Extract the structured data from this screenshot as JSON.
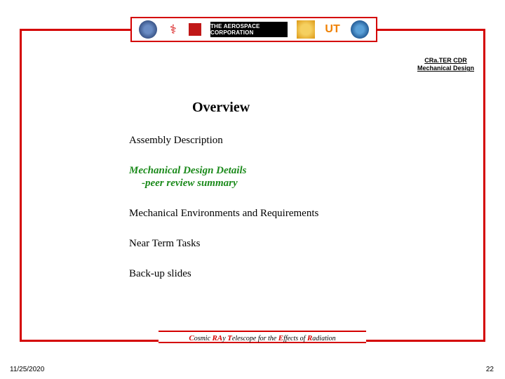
{
  "header": {
    "line1": "CRa.TER CDR",
    "line2": "Mechanical Design"
  },
  "logos": {
    "aerospace_text": "THE AEROSPACE\nCORPORATION",
    "ut_text": "UT",
    "figures_text": "⚕"
  },
  "title": "Overview",
  "items": [
    {
      "text": "Assembly Description",
      "highlight": false
    },
    {
      "text": "Mechanical Design Details",
      "sub": "-peer review summary",
      "highlight": true
    },
    {
      "text": "Mechanical Environments and Requirements",
      "highlight": false
    },
    {
      "text": "Near Term Tasks",
      "highlight": false
    },
    {
      "text": "Back-up slides",
      "highlight": false
    }
  ],
  "footer": {
    "c": "C",
    "osmic": "osmic ",
    "ra": "RA",
    "y": "y ",
    "t": "T",
    "elescope": "elescope for the ",
    "e": "E",
    "ffects": "ffects of ",
    "r": "R",
    "adiation": "adiation"
  },
  "date": "11/25/2020",
  "page": "22",
  "colors": {
    "accent": "#d40000",
    "highlight_text": "#1b8a1b"
  }
}
